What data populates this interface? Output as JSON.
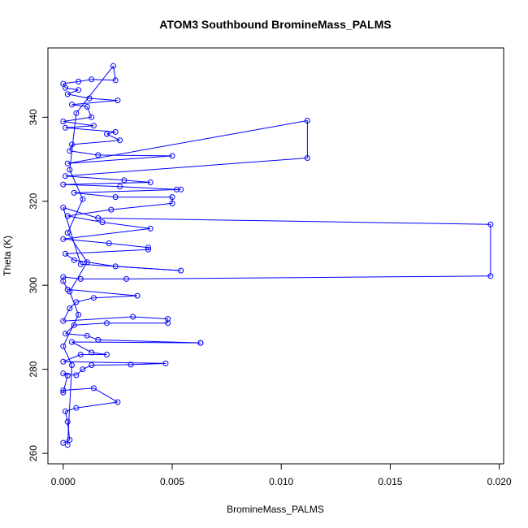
{
  "chart_data": {
    "type": "scatter",
    "title": "ATOM3 Southbound BromineMass_PALMS",
    "xlabel": "BromineMass_PALMS",
    "ylabel": "Theta (K)",
    "xlim": [
      -0.0007,
      0.0202
    ],
    "ylim": [
      257.5,
      356.5
    ],
    "x_ticks": [
      0.0,
      0.005,
      0.01,
      0.015,
      0.02
    ],
    "x_tick_labels": [
      "0.000",
      "0.005",
      "0.010",
      "0.015",
      "0.020"
    ],
    "y_ticks": [
      260,
      280,
      300,
      320,
      340
    ],
    "y_tick_labels": [
      "260",
      "280",
      "300",
      "320",
      "340"
    ],
    "grid": false,
    "legend": "none",
    "series": [
      {
        "color": "#0000ff",
        "marker": "open-circle",
        "connected": true,
        "points": [
          [
            0.0,
            262.5
          ],
          [
            0.0003,
            263.2
          ],
          [
            0.0002,
            267.5
          ],
          [
            0.0001,
            270.0
          ],
          [
            0.0006,
            270.8
          ],
          [
            0.0025,
            272.2
          ],
          [
            0.0014,
            275.5
          ],
          [
            0.0,
            275.0
          ],
          [
            0.0,
            274.5
          ],
          [
            0.0002,
            278.5
          ],
          [
            0.0,
            279.0
          ],
          [
            0.0006,
            278.6
          ],
          [
            0.0009,
            280.0
          ],
          [
            0.0013,
            281.0
          ],
          [
            0.0031,
            281.1
          ],
          [
            0.0047,
            281.4
          ],
          [
            0.0,
            281.8
          ],
          [
            0.0008,
            283.5
          ],
          [
            0.002,
            283.5
          ],
          [
            0.0013,
            284.0
          ],
          [
            0.0004,
            286.5
          ],
          [
            0.0063,
            286.3
          ],
          [
            0.0063,
            286.3
          ],
          [
            0.0016,
            287.0
          ],
          [
            0.0011,
            288.0
          ],
          [
            0.0001,
            288.5
          ],
          [
            0.0005,
            290.5
          ],
          [
            0.002,
            291.0
          ],
          [
            0.0048,
            291.0
          ],
          [
            0.0048,
            292.0
          ],
          [
            0.0032,
            292.5
          ],
          [
            0.0,
            291.5
          ],
          [
            0.0003,
            294.5
          ],
          [
            0.0006,
            296.0
          ],
          [
            0.0014,
            297.0
          ],
          [
            0.0034,
            297.5
          ],
          [
            0.0002,
            299.0
          ],
          [
            0.0,
            301.0
          ],
          [
            0.0,
            302.0
          ],
          [
            0.0008,
            301.5
          ],
          [
            0.0029,
            301.5
          ],
          [
            0.0196,
            302.2
          ],
          [
            0.0196,
            314.5
          ],
          [
            0.0016,
            316.0
          ],
          [
            0.0,
            318.5
          ],
          [
            0.0008,
            305.0
          ],
          [
            0.0054,
            303.5
          ],
          [
            0.0024,
            304.5
          ],
          [
            0.0005,
            306.0
          ],
          [
            0.0001,
            307.5
          ],
          [
            0.0039,
            308.5
          ],
          [
            0.0039,
            309.0
          ],
          [
            0.0021,
            310.0
          ],
          [
            0.0,
            311.0
          ],
          [
            0.004,
            313.5
          ],
          [
            0.0018,
            315.0
          ],
          [
            0.0002,
            316.5
          ],
          [
            0.0022,
            318.0
          ],
          [
            0.005,
            319.5
          ],
          [
            0.005,
            321.0
          ],
          [
            0.0024,
            321.0
          ],
          [
            0.0005,
            322.0
          ],
          [
            0.0054,
            322.8
          ],
          [
            0.0052,
            322.8
          ],
          [
            0.0026,
            323.5
          ],
          [
            0.0,
            324.0
          ],
          [
            0.004,
            324.5
          ],
          [
            0.0028,
            325.0
          ],
          [
            0.0001,
            326.0
          ],
          [
            0.0112,
            330.3
          ],
          [
            0.0112,
            339.2
          ],
          [
            0.0002,
            329.0
          ],
          [
            0.005,
            330.8
          ],
          [
            0.0016,
            331.0
          ],
          [
            0.0003,
            332.0
          ],
          [
            0.0004,
            333.5
          ],
          [
            0.0026,
            334.5
          ],
          [
            0.002,
            336.0
          ],
          [
            0.0024,
            336.5
          ],
          [
            0.0001,
            337.5
          ],
          [
            0.0014,
            338.0
          ],
          [
            0.0,
            339.0
          ],
          [
            0.0013,
            340.0
          ],
          [
            0.0011,
            342.5
          ],
          [
            0.0004,
            343.0
          ],
          [
            0.0025,
            344.0
          ],
          [
            0.0012,
            344.5
          ],
          [
            0.0002,
            345.5
          ],
          [
            0.0007,
            346.5
          ],
          [
            0.0001,
            347.0
          ],
          [
            0.0,
            348.0
          ],
          [
            0.0007,
            348.5
          ],
          [
            0.0013,
            349.0
          ],
          [
            0.0024,
            348.8
          ],
          [
            0.0023,
            352.2
          ],
          [
            0.0006,
            341.0
          ],
          [
            0.0003,
            327.5
          ],
          [
            0.0009,
            320.5
          ],
          [
            0.0002,
            312.5
          ],
          [
            0.0011,
            305.5
          ],
          [
            0.0003,
            298.5
          ],
          [
            0.0007,
            293.0
          ],
          [
            0.0,
            285.5
          ],
          [
            0.0004,
            281.0
          ],
          [
            0.0002,
            262.0
          ]
        ]
      }
    ]
  }
}
